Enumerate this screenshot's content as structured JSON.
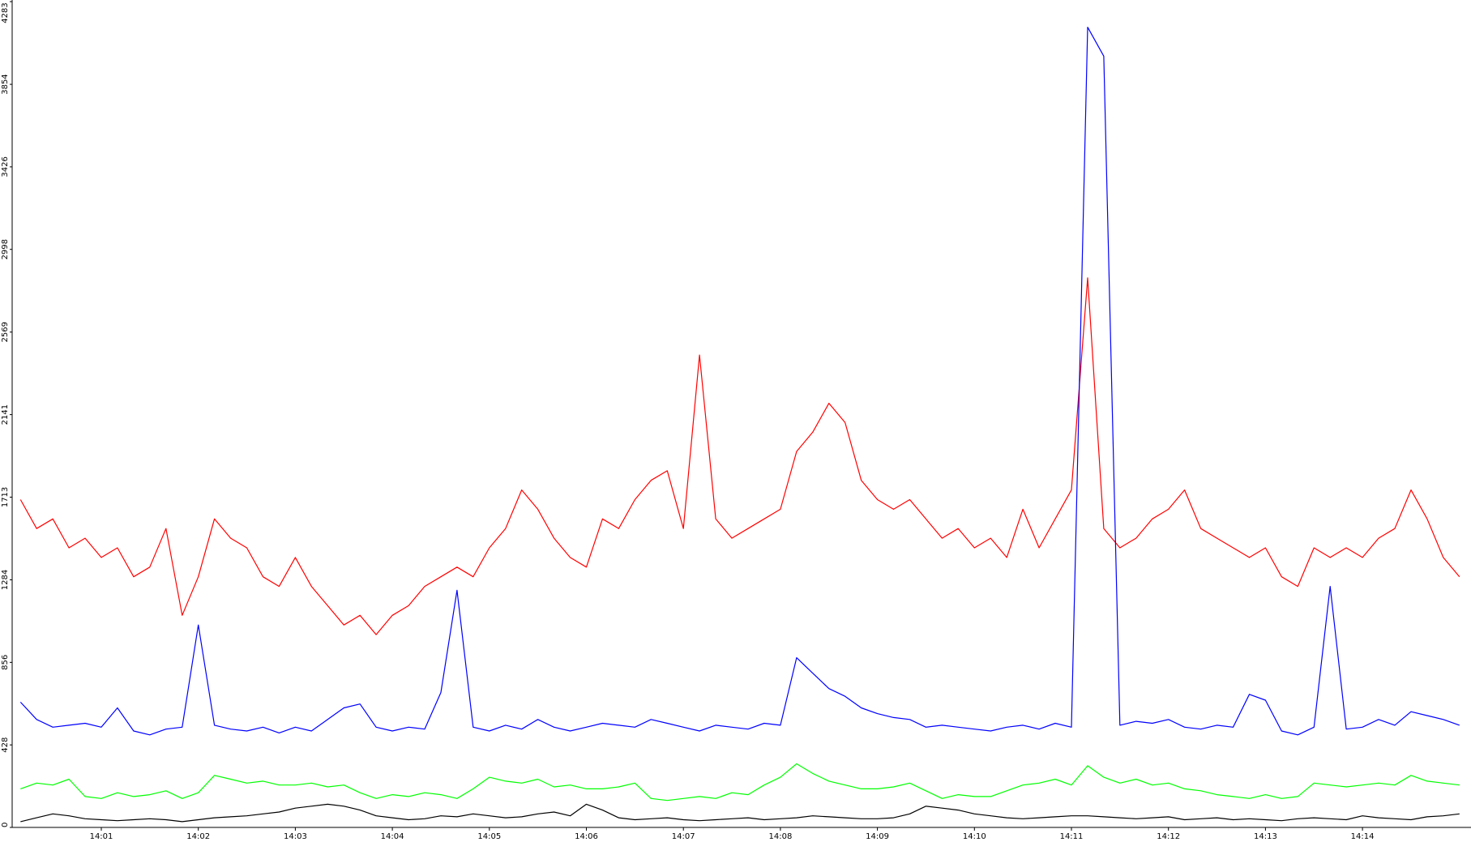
{
  "chart_data": {
    "type": "line",
    "categories": [
      null,
      null,
      null,
      null,
      null,
      "14:01",
      null,
      null,
      null,
      null,
      null,
      "14:02",
      null,
      null,
      null,
      null,
      null,
      "14:03",
      null,
      null,
      null,
      null,
      null,
      "14:04",
      null,
      null,
      null,
      null,
      null,
      "14:05",
      null,
      null,
      null,
      null,
      null,
      "14:06",
      null,
      null,
      null,
      null,
      null,
      "14:07",
      null,
      null,
      null,
      null,
      null,
      "14:08",
      null,
      null,
      null,
      null,
      null,
      "14:09",
      null,
      null,
      null,
      null,
      null,
      "14:10",
      null,
      null,
      null,
      null,
      null,
      "14:11",
      null,
      null,
      null,
      null,
      null,
      "14:12",
      null,
      null,
      null,
      null,
      null,
      "14:13",
      null,
      null,
      null,
      null,
      null,
      "14:14",
      null,
      null,
      null,
      null,
      null,
      null
    ],
    "series": [
      {
        "color": "#ff0000",
        "values": [
          1700,
          1550,
          1600,
          1450,
          1500,
          1400,
          1450,
          1300,
          1350,
          1550,
          1100,
          1300,
          1600,
          1500,
          1450,
          1300,
          1250,
          1400,
          1250,
          1150,
          1050,
          1100,
          1000,
          1100,
          1150,
          1250,
          1300,
          1350,
          1300,
          1450,
          1550,
          1750,
          1650,
          1500,
          1400,
          1350,
          1600,
          1550,
          1700,
          1800,
          1850,
          1550,
          2450,
          1600,
          1500,
          1550,
          1600,
          1650,
          1950,
          2050,
          2200,
          2100,
          1800,
          1700,
          1650,
          1700,
          1600,
          1500,
          1550,
          1450,
          1500,
          1400,
          1650,
          1450,
          1600,
          1750,
          2850,
          1550,
          1450,
          1500,
          1600,
          1650,
          1750,
          1550,
          1500,
          1450,
          1400,
          1450,
          1300,
          1250,
          1450,
          1400,
          1450,
          1400,
          1500,
          1550,
          1750,
          1600,
          1400,
          1300
        ]
      },
      {
        "color": "#0000ff",
        "values": [
          650,
          560,
          520,
          530,
          540,
          520,
          620,
          500,
          480,
          510,
          520,
          1050,
          530,
          510,
          500,
          520,
          490,
          520,
          500,
          560,
          620,
          640,
          520,
          500,
          520,
          510,
          700,
          1230,
          520,
          500,
          530,
          510,
          560,
          520,
          500,
          520,
          540,
          530,
          520,
          560,
          540,
          520,
          500,
          530,
          520,
          510,
          540,
          530,
          880,
          800,
          720,
          680,
          620,
          590,
          570,
          560,
          520,
          530,
          520,
          510,
          500,
          520,
          530,
          510,
          540,
          520,
          4150,
          4000,
          530,
          550,
          540,
          560,
          520,
          510,
          530,
          520,
          690,
          660,
          500,
          480,
          520,
          1250,
          510,
          520,
          560,
          530,
          600,
          580,
          560,
          530
        ]
      },
      {
        "color": "#00ff00",
        "values": [
          200,
          230,
          220,
          250,
          160,
          150,
          180,
          160,
          170,
          190,
          150,
          180,
          270,
          250,
          230,
          240,
          220,
          220,
          230,
          210,
          220,
          180,
          150,
          170,
          160,
          180,
          170,
          150,
          200,
          260,
          240,
          230,
          250,
          210,
          220,
          200,
          200,
          210,
          230,
          150,
          140,
          150,
          160,
          150,
          180,
          170,
          220,
          260,
          330,
          280,
          240,
          220,
          200,
          200,
          210,
          230,
          190,
          150,
          170,
          160,
          160,
          190,
          220,
          230,
          250,
          220,
          320,
          260,
          230,
          250,
          220,
          230,
          200,
          190,
          170,
          160,
          150,
          170,
          150,
          160,
          230,
          220,
          210,
          220,
          230,
          220,
          270,
          240,
          230,
          220
        ]
      },
      {
        "color": "#000000",
        "values": [
          30,
          50,
          70,
          60,
          45,
          40,
          35,
          40,
          45,
          40,
          30,
          40,
          50,
          55,
          60,
          70,
          80,
          100,
          110,
          120,
          110,
          90,
          60,
          50,
          40,
          45,
          60,
          55,
          70,
          60,
          50,
          55,
          70,
          80,
          60,
          120,
          90,
          50,
          40,
          45,
          50,
          40,
          35,
          40,
          45,
          50,
          40,
          45,
          50,
          60,
          55,
          50,
          45,
          45,
          50,
          70,
          110,
          100,
          90,
          70,
          60,
          50,
          45,
          50,
          55,
          60,
          60,
          55,
          50,
          45,
          50,
          55,
          40,
          45,
          50,
          40,
          45,
          40,
          35,
          45,
          50,
          45,
          40,
          60,
          50,
          45,
          40,
          55,
          60,
          70
        ]
      }
    ],
    "ylim": [
      0,
      4283
    ],
    "yticks": [
      0,
      428,
      856,
      1284,
      1713,
      2141,
      2569,
      2998,
      3426,
      3854,
      4283
    ],
    "grid": false
  }
}
